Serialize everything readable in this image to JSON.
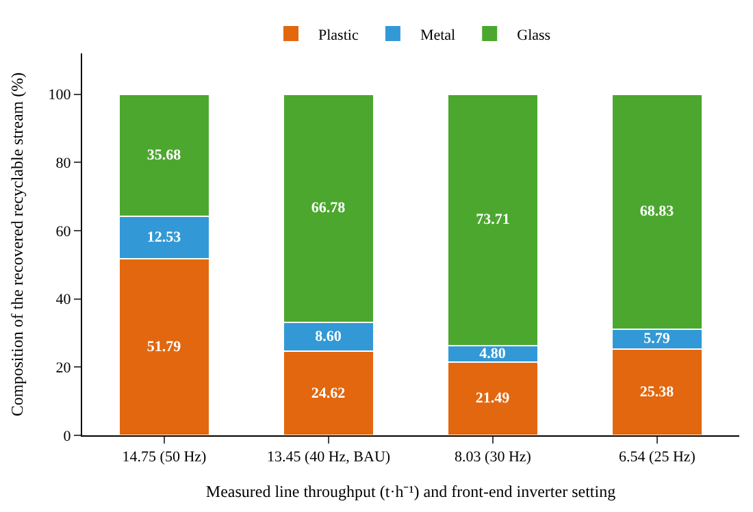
{
  "chart_data": {
    "type": "bar",
    "stacked": true,
    "xlabel": "Measured line throughput (t·h⁻¹) and front-end inverter setting",
    "ylabel": "Composition of the recovered recyclable stream (%)",
    "categories": [
      "14.75 (50 Hz)",
      "13.45 (40 Hz, BAU)",
      "8.03 (30 Hz)",
      "6.54 (25 Hz)"
    ],
    "series": [
      {
        "name": "Plastic",
        "color": "#e2670f",
        "values": [
          51.79,
          24.62,
          21.49,
          25.38
        ],
        "value_labels": [
          "51.79",
          "24.62",
          "21.49",
          "25.38"
        ]
      },
      {
        "name": "Metal",
        "color": "#3299d6",
        "values": [
          12.53,
          8.6,
          4.8,
          5.79
        ],
        "value_labels": [
          "12.53",
          "8.60",
          "4.80",
          "5.79"
        ]
      },
      {
        "name": "Glass",
        "color": "#4ca72f",
        "values": [
          35.68,
          66.78,
          73.71,
          68.83
        ],
        "value_labels": [
          "35.68",
          "66.78",
          "73.71",
          "68.83"
        ]
      }
    ],
    "ylim": [
      0,
      112
    ],
    "yticks": [
      0,
      20,
      40,
      60,
      80,
      100
    ],
    "legend": "top"
  }
}
